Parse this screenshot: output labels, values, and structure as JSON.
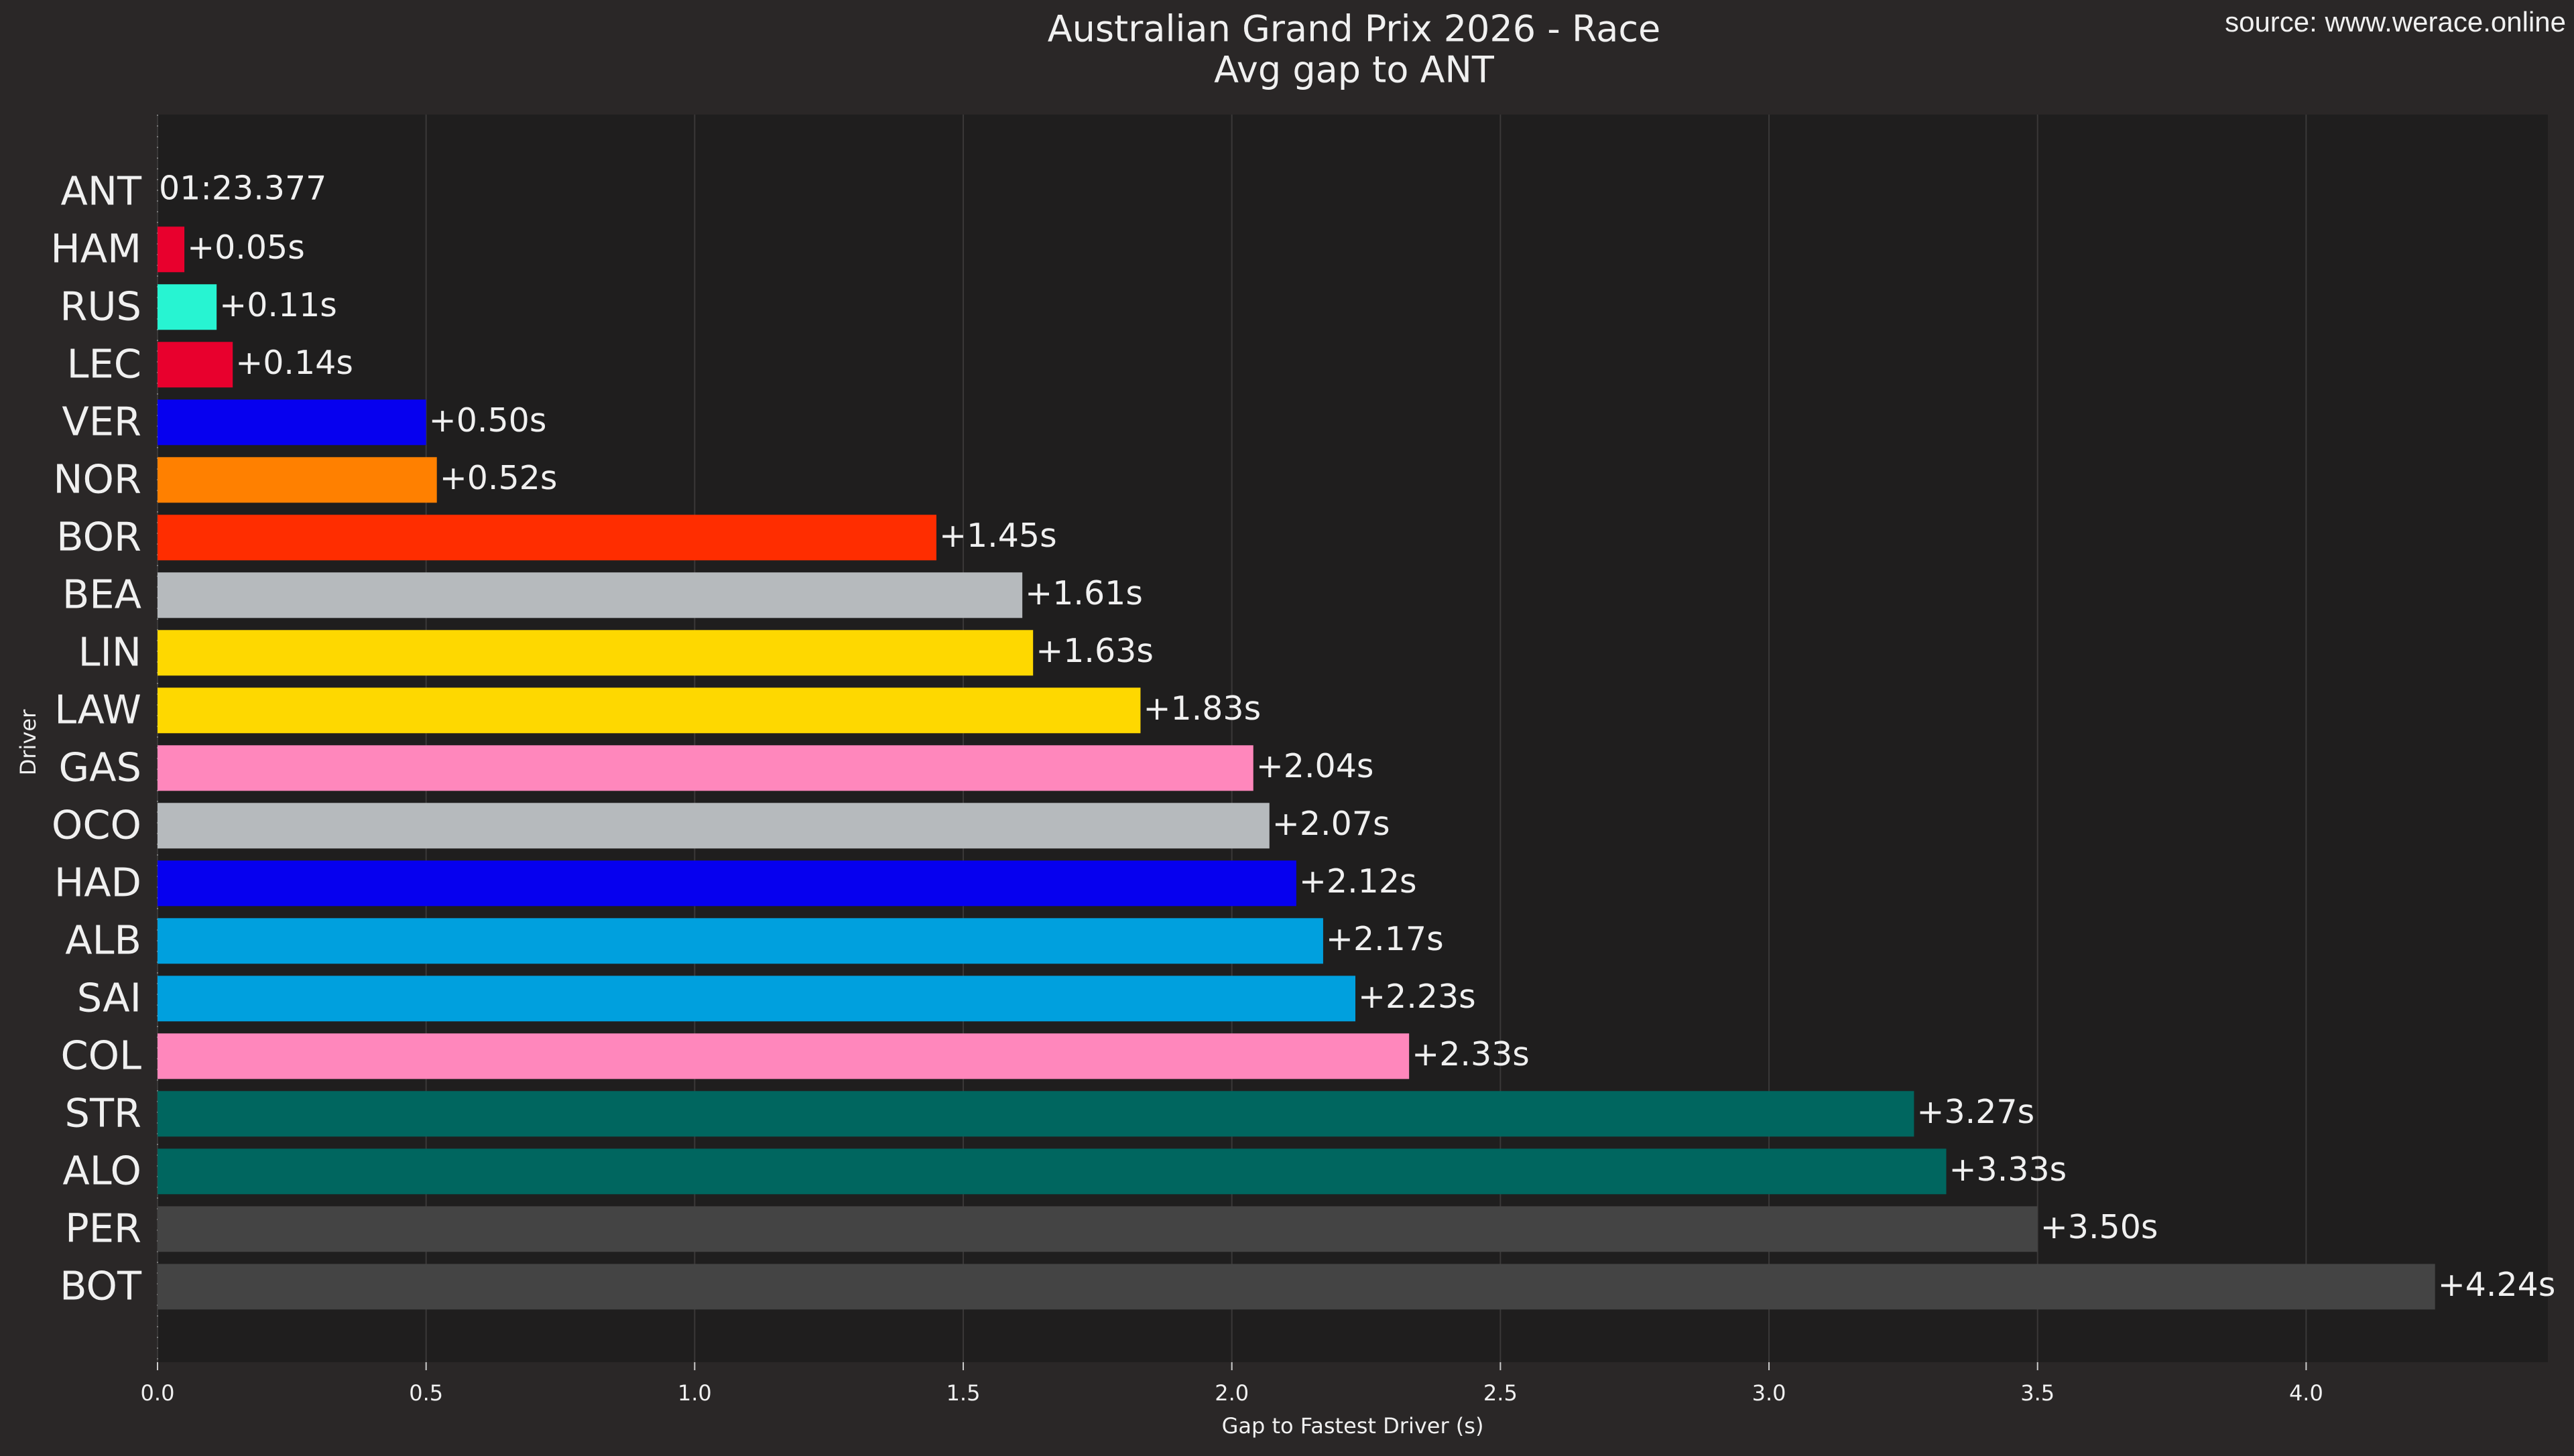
{
  "chart_data": {
    "type": "barh",
    "title": "Australian Grand Prix 2026 - Race",
    "subtitle": "Avg gap to ANT",
    "source": "source: www.werace.online",
    "xlabel": "Gap to Fastest Driver (s)",
    "ylabel": "Driver",
    "categories": [
      "ANT",
      "HAM",
      "RUS",
      "LEC",
      "VER",
      "NOR",
      "BOR",
      "BEA",
      "LIN",
      "LAW",
      "GAS",
      "OCO",
      "HAD",
      "ALB",
      "SAI",
      "COL",
      "STR",
      "ALO",
      "PER",
      "BOT"
    ],
    "values": [
      0,
      0.05,
      0.11,
      0.14,
      0.5,
      0.52,
      1.45,
      1.61,
      1.63,
      1.83,
      2.04,
      2.07,
      2.12,
      2.17,
      2.23,
      2.33,
      3.27,
      3.33,
      3.5,
      4.24
    ],
    "value_labels": [
      null,
      "+0.05s",
      "+0.11s",
      "+0.14s",
      "+0.50s",
      "+0.52s",
      "+1.45s",
      "+1.61s",
      "+1.63s",
      "+1.83s",
      "+2.04s",
      "+2.07s",
      "+2.12s",
      "+2.17s",
      "+2.23s",
      "+2.33s",
      "+3.27s",
      "+3.33s",
      "+3.50s",
      "+4.24s"
    ],
    "reference_time": "01:23.377",
    "colors": [
      "#e8e8e8",
      "#e8002d",
      "#27f4d2",
      "#e8002d",
      "#0600ef",
      "#ff8000",
      "#ff2d00",
      "#b6babd",
      "#fed800",
      "#fed800",
      "#ff87bc",
      "#b6babd",
      "#0600ef",
      "#00a0de",
      "#00a0de",
      "#ff87bc",
      "#00665f",
      "#00665f",
      "#444444",
      "#444444"
    ],
    "xlim": [
      0,
      4.45
    ],
    "xticks": [
      {
        "value": 0,
        "label": "0.0"
      },
      0.5,
      {
        "value": 1,
        "label": "1.0"
      },
      1.5,
      {
        "value": 2,
        "label": "2.0"
      },
      2.5,
      {
        "value": 3,
        "label": "3.0"
      },
      3.5,
      {
        "value": 4,
        "label": "4.0"
      }
    ],
    "grid": true
  }
}
